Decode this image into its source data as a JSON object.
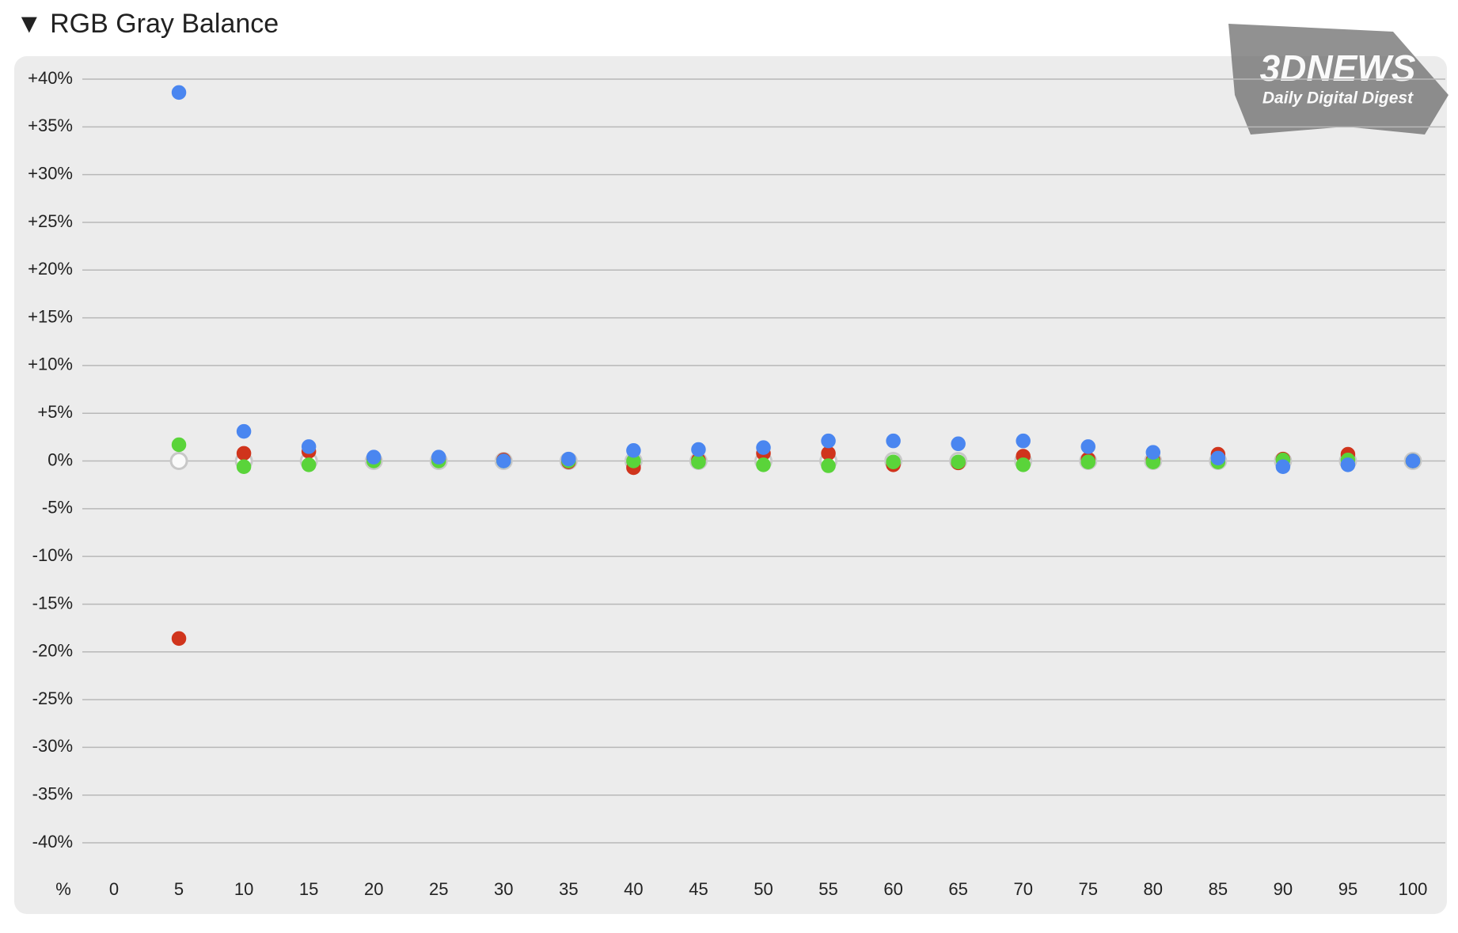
{
  "chart_data": {
    "type": "scatter",
    "title": "▼ RGB Gray Balance",
    "watermark": {
      "brand": "3DNEWS",
      "tagline": "Daily Digital Digest"
    },
    "x_label": "%",
    "x": [
      5,
      10,
      15,
      20,
      25,
      30,
      35,
      40,
      45,
      50,
      55,
      60,
      65,
      70,
      75,
      80,
      85,
      90,
      95,
      100
    ],
    "xlim": [
      0,
      100
    ],
    "xticks": [
      0,
      5,
      10,
      15,
      20,
      25,
      30,
      35,
      40,
      45,
      50,
      55,
      60,
      65,
      70,
      75,
      80,
      85,
      90,
      95,
      100
    ],
    "ylim": [
      -40,
      40
    ],
    "yticks": [
      {
        "value": 40,
        "label": "+40%"
      },
      {
        "value": 35,
        "label": "+35%"
      },
      {
        "value": 30,
        "label": "+30%"
      },
      {
        "value": 25,
        "label": "+25%"
      },
      {
        "value": 20,
        "label": "+20%"
      },
      {
        "value": 15,
        "label": "+15%"
      },
      {
        "value": 10,
        "label": "+10%"
      },
      {
        "value": 5,
        "label": "+5%"
      },
      {
        "value": 0,
        "label": "0%"
      },
      {
        "value": -5,
        "label": "-5%"
      },
      {
        "value": -10,
        "label": "-10%"
      },
      {
        "value": -15,
        "label": "-15%"
      },
      {
        "value": -20,
        "label": "-20%"
      },
      {
        "value": -25,
        "label": "-25%"
      },
      {
        "value": -30,
        "label": "-30%"
      },
      {
        "value": -35,
        "label": "-35%"
      },
      {
        "value": -40,
        "label": "-40%"
      }
    ],
    "grid": true,
    "series": [
      {
        "color": "#c8c8c8",
        "marker": "hollow",
        "values": [
          0,
          0,
          0,
          0,
          0,
          0,
          0,
          0,
          0,
          0,
          0,
          0,
          0,
          0,
          0,
          0,
          0,
          0,
          0,
          0
        ]
      },
      {
        "color": "#d0341c",
        "marker": "filled",
        "values": [
          -18.6,
          0.8,
          1.0,
          0.2,
          0.1,
          0.1,
          -0.1,
          -0.7,
          0.1,
          0.8,
          0.8,
          -0.4,
          -0.2,
          0.5,
          0.2,
          0.1,
          0.7,
          0.2,
          0.7,
          0
        ]
      },
      {
        "color": "#5ad43a",
        "marker": "filled",
        "values": [
          1.7,
          -0.6,
          -0.4,
          0,
          0,
          0,
          0,
          0,
          -0.1,
          -0.4,
          -0.5,
          -0.1,
          -0.1,
          -0.4,
          -0.1,
          -0.1,
          -0.1,
          0.1,
          0.1,
          0
        ]
      },
      {
        "color": "#4a86f0",
        "marker": "filled",
        "values": [
          38.6,
          3.1,
          1.5,
          0.4,
          0.4,
          0,
          0.2,
          1.1,
          1.2,
          1.4,
          2.1,
          2.1,
          1.8,
          2.1,
          1.5,
          0.9,
          0.3,
          -0.6,
          -0.4,
          0
        ]
      }
    ]
  }
}
